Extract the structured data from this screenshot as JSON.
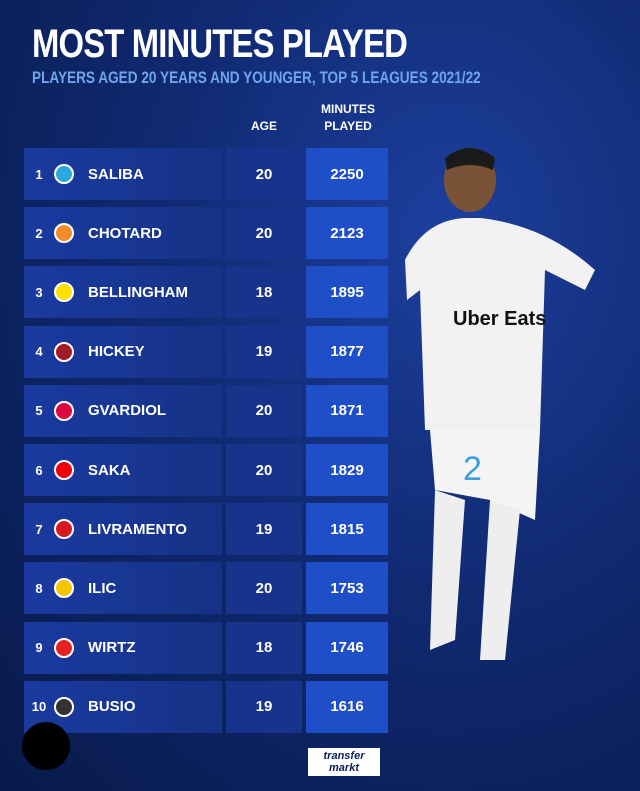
{
  "title": "MOST MINUTES PLAYED",
  "subtitle": "PLAYERS AGED 20 YEARS AND YOUNGER, TOP 5 LEAGUES 2021/22",
  "headers": {
    "age": "AGE",
    "minutes": "MINUTES PLAYED"
  },
  "rows": [
    {
      "rank": "1",
      "name": "SALIBA",
      "age": "20",
      "minutes": "2250",
      "club_color": "#2aa8e0"
    },
    {
      "rank": "2",
      "name": "CHOTARD",
      "age": "20",
      "minutes": "2123",
      "club_color": "#f28c28"
    },
    {
      "rank": "3",
      "name": "BELLINGHAM",
      "age": "18",
      "minutes": "1895",
      "club_color": "#fde100"
    },
    {
      "rank": "4",
      "name": "HICKEY",
      "age": "19",
      "minutes": "1877",
      "club_color": "#a21c26"
    },
    {
      "rank": "5",
      "name": "GVARDIOL",
      "age": "20",
      "minutes": "1871",
      "club_color": "#dd0741"
    },
    {
      "rank": "6",
      "name": "SAKA",
      "age": "20",
      "minutes": "1829",
      "club_color": "#ef0107"
    },
    {
      "rank": "7",
      "name": "LIVRAMENTO",
      "age": "19",
      "minutes": "1815",
      "club_color": "#d71920"
    },
    {
      "rank": "8",
      "name": "ILIC",
      "age": "20",
      "minutes": "1753",
      "club_color": "#f5c400"
    },
    {
      "rank": "9",
      "name": "WIRTZ",
      "age": "18",
      "minutes": "1746",
      "club_color": "#e32221"
    },
    {
      "rank": "10",
      "name": "BUSIO",
      "age": "19",
      "minutes": "1616",
      "club_color": "#333333"
    }
  ],
  "player_shirt": {
    "sponsor": "Uber Eats",
    "number": "2"
  },
  "brand": "transfer markt"
}
